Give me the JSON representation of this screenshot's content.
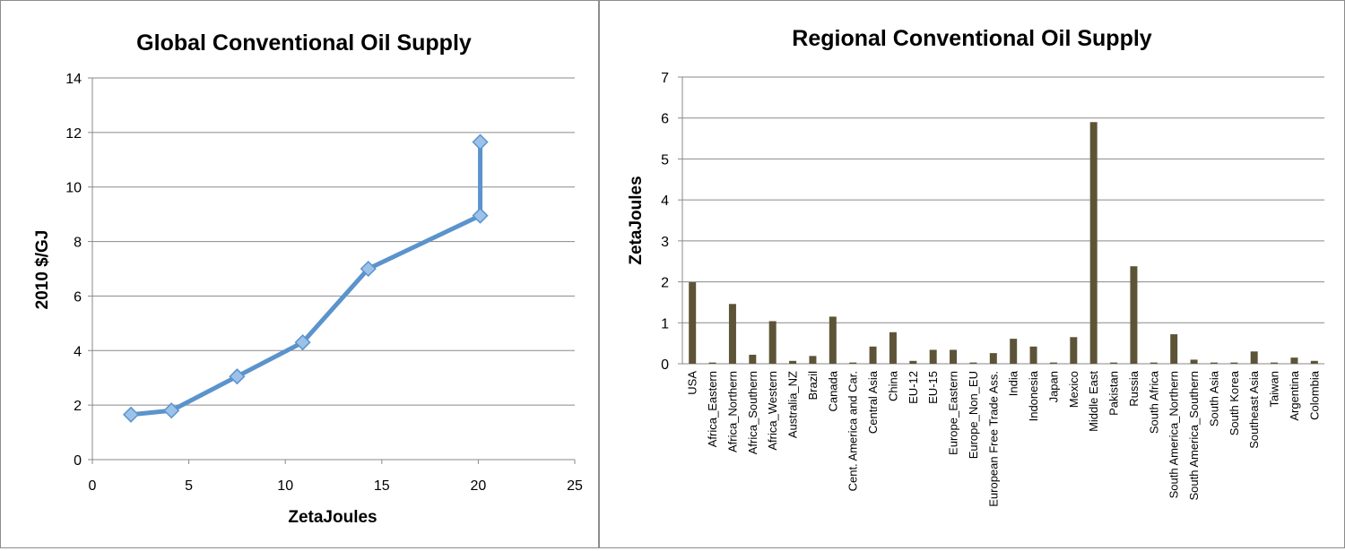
{
  "chart_data": [
    {
      "type": "line",
      "title": "Global Conventional Oil Supply",
      "xlabel": "ZetaJoules",
      "ylabel": "2010 $/GJ",
      "xlim": [
        0,
        25
      ],
      "ylim": [
        0,
        14
      ],
      "x_ticks": [
        0,
        5,
        10,
        15,
        20,
        25
      ],
      "y_ticks": [
        0,
        2,
        4,
        6,
        8,
        10,
        12,
        14
      ],
      "grid": "horizontal",
      "series_color": "#5b93cc",
      "marker_color": "#9dc2ea",
      "points": [
        {
          "x": 2.0,
          "y": 1.65
        },
        {
          "x": 4.1,
          "y": 1.8
        },
        {
          "x": 7.5,
          "y": 3.05
        },
        {
          "x": 10.9,
          "y": 4.3
        },
        {
          "x": 14.3,
          "y": 7.0
        },
        {
          "x": 20.1,
          "y": 8.95
        },
        {
          "x": 20.1,
          "y": 11.65
        }
      ]
    },
    {
      "type": "bar",
      "title": "Regional Conventional Oil Supply",
      "xlabel": "",
      "ylabel": "ZetaJoules",
      "ylim": [
        0,
        7
      ],
      "y_ticks": [
        0,
        1,
        2,
        3,
        4,
        5,
        6,
        7
      ],
      "grid": "horizontal",
      "bar_color": "#5d5438",
      "categories": [
        "USA",
        "Africa_Eastern",
        "Africa_Northern",
        "Africa_Southern",
        "Africa_Western",
        "Australia_NZ",
        "Brazil",
        "Canada",
        "Cent. America and Car.",
        "Central Asia",
        "China",
        "EU-12",
        "EU-15",
        "Europe_Eastern",
        "Europe_Non_EU",
        "European Free Trade Ass.",
        "India",
        "Indonesia",
        "Japan",
        "Mexico",
        "Middle East",
        "Pakistan",
        "Russia",
        "South Africa",
        "South America_Northern",
        "South America_Southern",
        "South Asia",
        "South Korea",
        "Southeast Asia",
        "Taiwan",
        "Argentina",
        "Colombia"
      ],
      "values": [
        1.99,
        0.03,
        1.46,
        0.22,
        1.04,
        0.07,
        0.19,
        1.15,
        0.03,
        0.42,
        0.77,
        0.07,
        0.34,
        0.34,
        0.03,
        0.26,
        0.61,
        0.42,
        0.03,
        0.65,
        5.9,
        0.03,
        2.38,
        0.03,
        0.72,
        0.1,
        0.03,
        0.03,
        0.3,
        0.03,
        0.15,
        0.07
      ]
    }
  ]
}
